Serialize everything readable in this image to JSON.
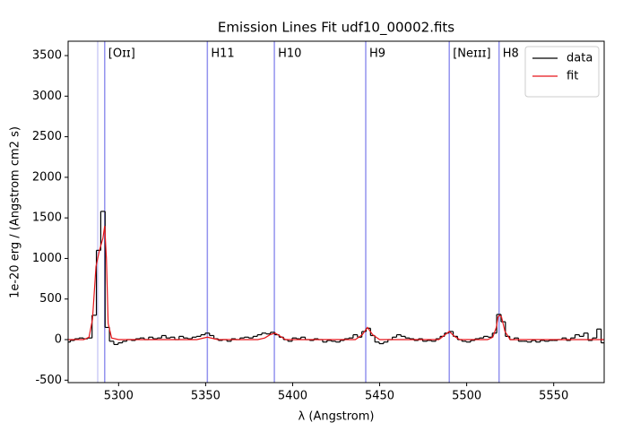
{
  "chart_data": {
    "type": "step-line",
    "title": "Emission Lines Fit udf10_00002.fits",
    "x_label": "λ (Angstrom)",
    "y_label": "1e-20 erg / (Angstrom cm2 s)",
    "xlim": [
      5271,
      5579
    ],
    "ylim": [
      -530,
      3677
    ],
    "xticks": [
      5300,
      5350,
      5400,
      5450,
      5500,
      5550
    ],
    "yticks": [
      -500,
      0,
      500,
      1000,
      1500,
      2000,
      2500,
      3000,
      3500
    ],
    "legend": "upper right",
    "line_color": "#6f6fe8",
    "lines": {
      "x": [
        5288,
        5292,
        5351,
        5389.5,
        5442,
        5490,
        5518.6
      ],
      "labels": [
        null,
        "[Oɪɪ]",
        "H11",
        "H10",
        "H9",
        "[Neɪɪɪ]",
        "H8"
      ],
      "alpha": [
        0.35,
        0.75,
        0.75,
        0.75,
        0.75,
        0.75,
        0.75
      ]
    },
    "series": [
      {
        "name": "data",
        "color": "#000000",
        "step": true,
        "x": [
          5271,
          5273.5,
          5276,
          5278.5,
          5281,
          5283.5,
          5286,
          5288.5,
          5291,
          5293.5,
          5296,
          5298.5,
          5301,
          5303.5,
          5306,
          5308.5,
          5311,
          5313.5,
          5316,
          5318.5,
          5321,
          5323.5,
          5326,
          5328.5,
          5331,
          5333.5,
          5336,
          5338.5,
          5341,
          5343.5,
          5346,
          5348.5,
          5351,
          5353.5,
          5356,
          5358.5,
          5361,
          5363.5,
          5366,
          5368.5,
          5371,
          5373.5,
          5376,
          5378.5,
          5381,
          5383.5,
          5386,
          5388.5,
          5391,
          5393.5,
          5396,
          5398.5,
          5401,
          5403.5,
          5406,
          5408.5,
          5411,
          5413.5,
          5416,
          5418.5,
          5421,
          5423.5,
          5426,
          5428.5,
          5431,
          5433.5,
          5436,
          5438.5,
          5441,
          5443.5,
          5446,
          5448.5,
          5451,
          5453.5,
          5456,
          5458.5,
          5461,
          5463.5,
          5466,
          5468.5,
          5471,
          5473.5,
          5476,
          5478.5,
          5481,
          5483.5,
          5486,
          5488.5,
          5491,
          5493.5,
          5496,
          5498.5,
          5501,
          5503.5,
          5506,
          5508.5,
          5511,
          5513.5,
          5516,
          5518.5,
          5521,
          5523.5,
          5526,
          5528.5,
          5531,
          5533.5,
          5536,
          5538.5,
          5541,
          5543.5,
          5546,
          5548.5,
          5551,
          5553.5,
          5556,
          5558.5,
          5561,
          5563.5,
          5566,
          5568.5,
          5571,
          5573.5,
          5576,
          5578.5
        ],
        "values": [
          -30,
          -10,
          10,
          20,
          10,
          20,
          300,
          1100,
          1580,
          150,
          -20,
          -60,
          -40,
          -20,
          0,
          -10,
          10,
          20,
          0,
          30,
          10,
          20,
          50,
          20,
          30,
          0,
          40,
          20,
          10,
          30,
          40,
          60,
          80,
          50,
          10,
          -10,
          0,
          -20,
          10,
          0,
          20,
          30,
          20,
          40,
          60,
          80,
          70,
          90,
          60,
          30,
          0,
          -20,
          20,
          10,
          30,
          0,
          -10,
          10,
          0,
          -30,
          -10,
          -20,
          -30,
          -10,
          10,
          20,
          60,
          30,
          100,
          140,
          50,
          -30,
          -50,
          -30,
          0,
          30,
          60,
          40,
          20,
          10,
          -10,
          10,
          -20,
          -10,
          -20,
          10,
          40,
          80,
          100,
          40,
          0,
          -20,
          -30,
          -10,
          10,
          20,
          40,
          30,
          80,
          310,
          220,
          40,
          0,
          20,
          -20,
          -20,
          -30,
          -10,
          -30,
          -10,
          -20,
          -10,
          -10,
          0,
          20,
          -10,
          20,
          60,
          40,
          80,
          -10,
          20,
          130,
          -40
        ]
      },
      {
        "name": "fit",
        "color": "#e8151a",
        "x": [
          5271,
          5280,
          5283,
          5285,
          5287,
          5289,
          5291,
          5292,
          5293,
          5294,
          5296,
          5300,
          5345,
          5348,
          5351,
          5354,
          5357,
          5380,
          5384,
          5387,
          5390,
          5393,
          5396,
          5436,
          5440,
          5443,
          5446,
          5450,
          5484,
          5487,
          5490,
          5493,
          5496,
          5512,
          5515,
          5517,
          5518,
          5519,
          5520,
          5522,
          5525,
          5579
        ],
        "values": [
          0,
          0,
          30,
          250,
          900,
          1100,
          1250,
          1400,
          1000,
          200,
          20,
          0,
          0,
          15,
          30,
          15,
          0,
          0,
          20,
          60,
          80,
          40,
          0,
          0,
          60,
          150,
          60,
          0,
          0,
          50,
          100,
          40,
          0,
          0,
          30,
          150,
          280,
          300,
          280,
          100,
          0,
          0
        ]
      }
    ]
  }
}
